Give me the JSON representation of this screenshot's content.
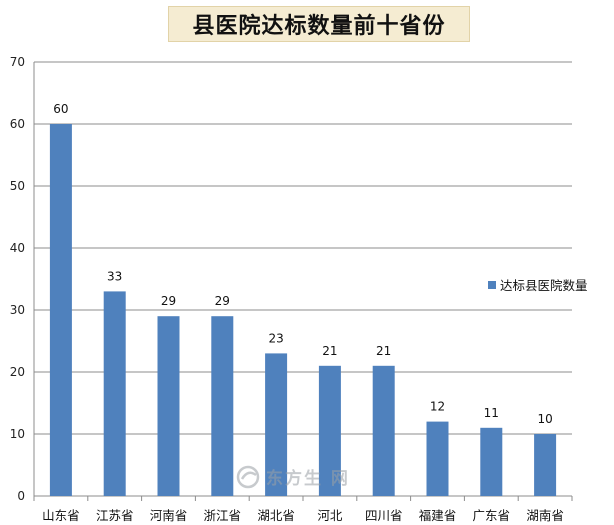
{
  "chart_data": {
    "type": "bar",
    "title": "县医院达标数量前十省份",
    "categories": [
      "山东省",
      "江苏省",
      "河南省",
      "浙江省",
      "湖北省",
      "河北",
      "四川省",
      "福建省",
      "广东省",
      "湖南省"
    ],
    "series": [
      {
        "name": "达标县医院数量",
        "values": [
          60,
          33,
          29,
          29,
          23,
          21,
          21,
          12,
          11,
          10
        ]
      }
    ],
    "ylim": [
      0,
      70
    ],
    "yticks": [
      0,
      10,
      20,
      30,
      40,
      50,
      60,
      70
    ],
    "grid": true,
    "legend_position": "right",
    "bar_color": "#4f81bd",
    "data_labels": true
  },
  "watermark": {
    "text": "东方生 网"
  }
}
